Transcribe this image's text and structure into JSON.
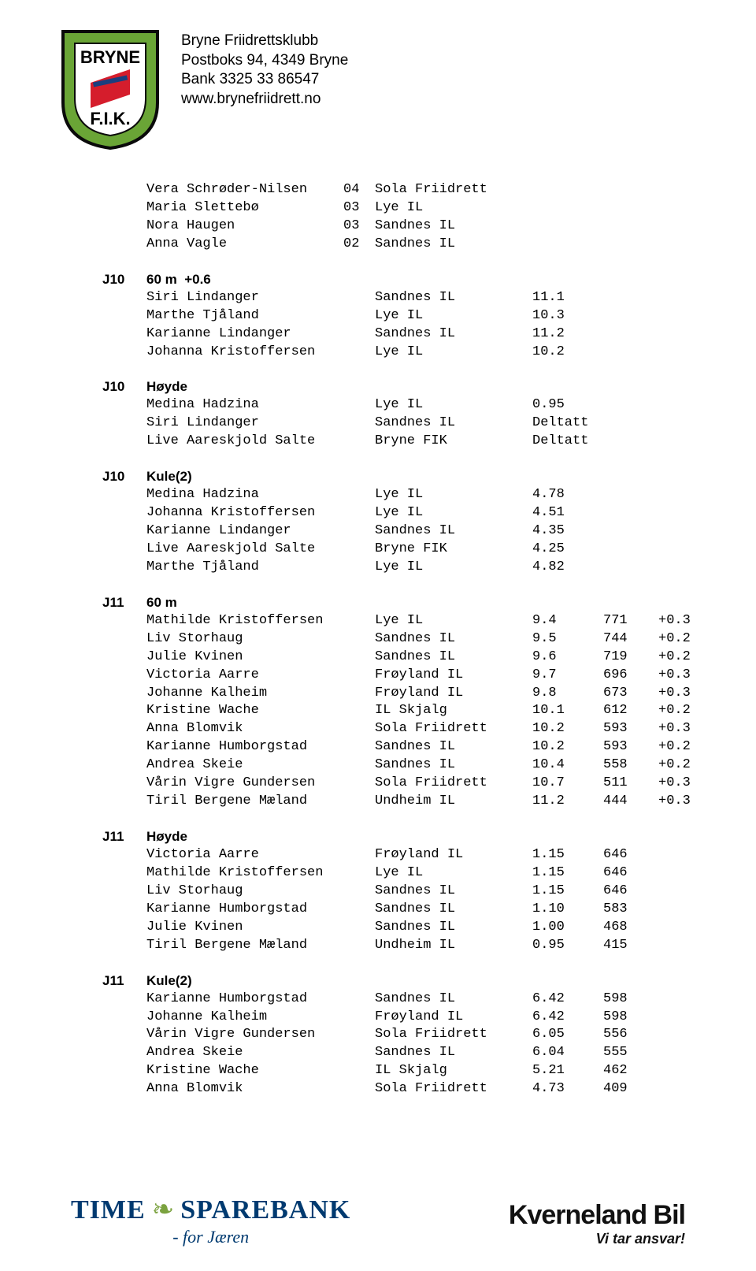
{
  "header": {
    "org_name": "Bryne Friidrettsklubb",
    "address": "Postboks 94, 4349 Bryne",
    "bank": "Bank 3325 33 86547",
    "website": "www.brynefriidrett.no",
    "logo_top": "BRYNE",
    "logo_bottom": "F.I.K.",
    "logo_ribbon": "BRYNE FRIIDRETTSKLUBB",
    "logo_colors": {
      "shield_fill": "#6aa536",
      "shield_border": "#0a0a0a",
      "flag_red": "#d51d2c",
      "flag_blue": "#1a3e7e"
    }
  },
  "sections": [
    {
      "category": "",
      "event": "",
      "rows": [
        [
          "Vera Schrøder-Nilsen",
          "04",
          "Sola Friidrett",
          "",
          "",
          ""
        ],
        [
          "Maria Slettebø",
          "03",
          "Lye IL",
          "",
          "",
          ""
        ],
        [
          "Nora Haugen",
          "03",
          "Sandnes IL",
          "",
          "",
          ""
        ],
        [
          "Anna Vagle",
          "02",
          "Sandnes IL",
          "",
          "",
          ""
        ]
      ]
    },
    {
      "category": "J10",
      "event": "60 m  +0.6",
      "rows": [
        [
          "Siri Lindanger",
          "",
          "Sandnes IL",
          "11.1",
          "",
          ""
        ],
        [
          "Marthe Tjåland",
          "",
          "Lye IL",
          "10.3",
          "",
          ""
        ],
        [
          "Karianne Lindanger",
          "",
          "Sandnes IL",
          "11.2",
          "",
          ""
        ],
        [
          "Johanna Kristoffersen",
          "",
          "Lye IL",
          "10.2",
          "",
          ""
        ]
      ]
    },
    {
      "category": "J10",
      "event": "Høyde",
      "rows": [
        [
          "Medina Hadzina",
          "",
          "Lye IL",
          "0.95",
          "",
          ""
        ],
        [
          "Siri Lindanger",
          "",
          "Sandnes IL",
          "Deltatt",
          "",
          ""
        ],
        [
          "Live Aareskjold Salte",
          "",
          "Bryne FIK",
          "Deltatt",
          "",
          ""
        ]
      ]
    },
    {
      "category": "J10",
      "event": "Kule(2)",
      "rows": [
        [
          "Medina Hadzina",
          "",
          "Lye IL",
          "4.78",
          "",
          ""
        ],
        [
          "Johanna Kristoffersen",
          "",
          "Lye IL",
          "4.51",
          "",
          ""
        ],
        [
          "Karianne Lindanger",
          "",
          "Sandnes IL",
          "4.35",
          "",
          ""
        ],
        [
          "Live Aareskjold Salte",
          "",
          "Bryne FIK",
          "4.25",
          "",
          ""
        ],
        [
          "Marthe Tjåland",
          "",
          "Lye IL",
          "4.82",
          "",
          ""
        ]
      ]
    },
    {
      "category": "J11",
      "event": "60 m",
      "rows": [
        [
          "Mathilde Kristoffersen",
          "",
          "Lye IL",
          "9.4",
          "771",
          "+0.3"
        ],
        [
          "Liv Storhaug",
          "",
          "Sandnes IL",
          "9.5",
          "744",
          "+0.2"
        ],
        [
          "Julie Kvinen",
          "",
          "Sandnes IL",
          "9.6",
          "719",
          "+0.2"
        ],
        [
          "Victoria Aarre",
          "",
          "Frøyland IL",
          "9.7",
          "696",
          "+0.3"
        ],
        [
          "Johanne Kalheim",
          "",
          "Frøyland IL",
          "9.8",
          "673",
          "+0.3"
        ],
        [
          "Kristine Wache",
          "",
          "IL Skjalg",
          "10.1",
          "612",
          "+0.2"
        ],
        [
          "Anna Blomvik",
          "",
          "Sola Friidrett",
          "10.2",
          "593",
          "+0.3"
        ],
        [
          "Karianne Humborgstad",
          "",
          "Sandnes IL",
          "10.2",
          "593",
          "+0.2"
        ],
        [
          "Andrea Skeie",
          "",
          "Sandnes IL",
          "10.4",
          "558",
          "+0.2"
        ],
        [
          "Vårin Vigre Gundersen",
          "",
          "Sola Friidrett",
          "10.7",
          "511",
          "+0.3"
        ],
        [
          "Tiril Bergene Mæland",
          "",
          "Undheim IL",
          "11.2",
          "444",
          "+0.3"
        ]
      ]
    },
    {
      "category": "J11",
      "event": "Høyde",
      "rows": [
        [
          "Victoria Aarre",
          "",
          "Frøyland IL",
          "1.15",
          "646",
          ""
        ],
        [
          "Mathilde Kristoffersen",
          "",
          "Lye IL",
          "1.15",
          "646",
          ""
        ],
        [
          "Liv Storhaug",
          "",
          "Sandnes IL",
          "1.15",
          "646",
          ""
        ],
        [
          "Karianne Humborgstad",
          "",
          "Sandnes IL",
          "1.10",
          "583",
          ""
        ],
        [
          "Julie Kvinen",
          "",
          "Sandnes IL",
          "1.00",
          "468",
          ""
        ],
        [
          "Tiril Bergene Mæland",
          "",
          "Undheim IL",
          "0.95",
          "415",
          ""
        ]
      ]
    },
    {
      "category": "J11",
      "event": "Kule(2)",
      "rows": [
        [
          "Karianne Humborgstad",
          "",
          "Sandnes IL",
          "6.42",
          "598",
          ""
        ],
        [
          "Johanne Kalheim",
          "",
          "Frøyland IL",
          "6.42",
          "598",
          ""
        ],
        [
          "Vårin Vigre Gundersen",
          "",
          "Sola Friidrett",
          "6.05",
          "556",
          ""
        ],
        [
          "Andrea Skeie",
          "",
          "Sandnes IL",
          "6.04",
          "555",
          ""
        ],
        [
          "Kristine Wache",
          "",
          "IL Skjalg",
          "5.21",
          "462",
          ""
        ],
        [
          "Anna Blomvik",
          "",
          "Sola Friidrett",
          "4.73",
          "409",
          ""
        ]
      ]
    }
  ],
  "footer": {
    "bank_name_1": "TIME",
    "bank_name_2": "SPAREBANK",
    "bank_tagline": "- for Jæren",
    "sponsor_name": "Kverneland Bil",
    "sponsor_tagline": "Vi tar ansvar!"
  }
}
